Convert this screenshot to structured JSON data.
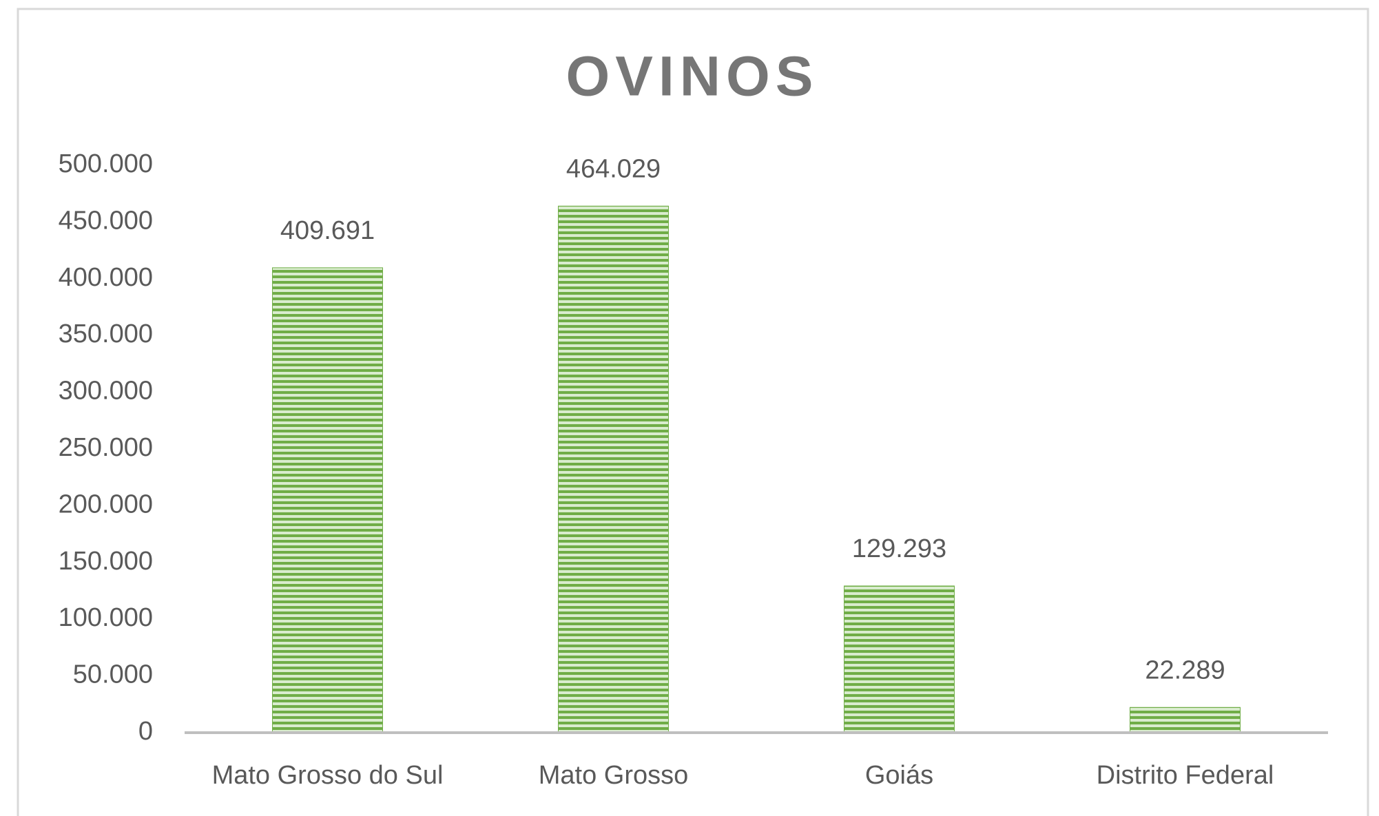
{
  "chart_data": {
    "type": "bar",
    "title": "OVINOS",
    "categories": [
      "Mato Grosso do Sul",
      "Mato Grosso",
      "Goiás",
      "Distrito Federal"
    ],
    "values": [
      409691,
      464029,
      129293,
      22289
    ],
    "value_labels": [
      "409.691",
      "464.029",
      "129.293",
      "22.289"
    ],
    "color": "#70ad47",
    "ylim": [
      0,
      500000
    ],
    "yticks": [
      0,
      {
        "value": 50000,
        "label": "50.000"
      },
      {
        "value": 100000,
        "label": "100.000"
      },
      {
        "value": 150000,
        "label": "150.000"
      },
      {
        "value": 200000,
        "label": "200.000"
      },
      {
        "value": 250000,
        "label": "250.000"
      },
      {
        "value": 300000,
        "label": "300.000"
      },
      {
        "value": 350000,
        "label": "350.000"
      },
      {
        "value": 400000,
        "label": "400.000"
      },
      {
        "value": 450000,
        "label": "450.000"
      },
      {
        "value": 500000,
        "label": "500.000"
      }
    ],
    "grid": false
  }
}
